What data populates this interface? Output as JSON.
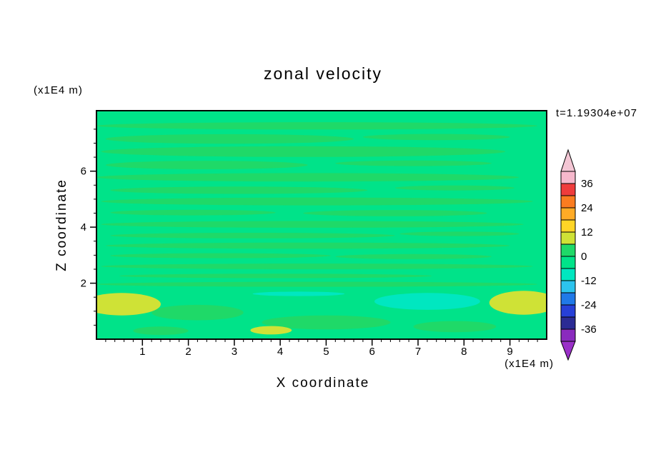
{
  "chart_data": {
    "type": "heatmap",
    "title": "zonal velocity",
    "xlabel": "X coordinate",
    "ylabel": "Z coordinate",
    "x_unit_note": "(x1E4 m)",
    "y_unit_note": "(x1E4 m)",
    "annotation": "t=1.19304e+07",
    "xlim": [
      0,
      9.8
    ],
    "ylim": [
      0,
      8.16
    ],
    "x_ticks": [
      1,
      2,
      3,
      4,
      5,
      6,
      7,
      8,
      9
    ],
    "y_ticks": [
      2,
      4,
      6
    ],
    "x_minor_step": 0.2,
    "y_minor_step": 0.5,
    "grid": false,
    "colorbar_position": "right",
    "background_color": "#00e389",
    "band_colors": {
      "g": "#1fd968",
      "y": "#cfe236",
      "c": "#00e7c0"
    },
    "colorbar": {
      "tick_labels": [
        "36",
        "24",
        "12",
        "0",
        "-12",
        "-24",
        "-36"
      ],
      "levels": [
        42,
        36,
        30,
        24,
        18,
        12,
        6,
        0,
        -6,
        -12,
        -18,
        -24,
        -30,
        -36,
        -42
      ],
      "colors_top_to_bottom": [
        "#f6b8cc",
        "#ef3c3c",
        "#fb7c20",
        "#ffab26",
        "#ffd526",
        "#cfe236",
        "#1fd968",
        "#00e389",
        "#00e7c0",
        "#2cc4ee",
        "#2079e8",
        "#2740d8",
        "#2b2b94",
        "#8a2bbe"
      ],
      "arrow_top_color": "#f3c6d4",
      "arrow_bottom_color": "#9a30c8"
    },
    "field_description": "Filled contour field dominated by the 0 to -6 spring-green band, with long thin horizontal streaks of the 0 to +6 green band, yellow-green (+6 to +12) patches at the lower-left and lower-right, and an aquamarine (-6 to -12) patch near the bottom right.",
    "streaks": [
      {
        "x": 4.8,
        "z": 7.62,
        "w": 9.6,
        "h": 0.26,
        "b": "g"
      },
      {
        "x": 2.9,
        "z": 7.15,
        "w": 5.4,
        "h": 0.34,
        "b": "g"
      },
      {
        "x": 7.4,
        "z": 7.22,
        "w": 3.2,
        "h": 0.22,
        "b": "g"
      },
      {
        "x": 4.5,
        "z": 6.7,
        "w": 8.8,
        "h": 0.38,
        "b": "g"
      },
      {
        "x": 2.4,
        "z": 6.22,
        "w": 4.4,
        "h": 0.3,
        "b": "g"
      },
      {
        "x": 6.9,
        "z": 6.28,
        "w": 3.4,
        "h": 0.2,
        "b": "g"
      },
      {
        "x": 4.6,
        "z": 5.78,
        "w": 9.2,
        "h": 0.3,
        "b": "g"
      },
      {
        "x": 3.1,
        "z": 5.32,
        "w": 5.6,
        "h": 0.26,
        "b": "g"
      },
      {
        "x": 7.8,
        "z": 5.4,
        "w": 2.6,
        "h": 0.18,
        "b": "g"
      },
      {
        "x": 4.8,
        "z": 4.92,
        "w": 9.4,
        "h": 0.28,
        "b": "g"
      },
      {
        "x": 2.1,
        "z": 4.52,
        "w": 3.6,
        "h": 0.2,
        "b": "g"
      },
      {
        "x": 6.5,
        "z": 4.5,
        "w": 4.0,
        "h": 0.22,
        "b": "g"
      },
      {
        "x": 4.7,
        "z": 4.1,
        "w": 9.2,
        "h": 0.24,
        "b": "g"
      },
      {
        "x": 3.4,
        "z": 3.7,
        "w": 6.2,
        "h": 0.2,
        "b": "g"
      },
      {
        "x": 7.9,
        "z": 3.76,
        "w": 2.6,
        "h": 0.16,
        "b": "g"
      },
      {
        "x": 4.6,
        "z": 3.34,
        "w": 8.8,
        "h": 0.22,
        "b": "g"
      },
      {
        "x": 2.7,
        "z": 2.98,
        "w": 4.8,
        "h": 0.18,
        "b": "g"
      },
      {
        "x": 6.9,
        "z": 2.95,
        "w": 3.4,
        "h": 0.18,
        "b": "g"
      },
      {
        "x": 4.8,
        "z": 2.6,
        "w": 9.4,
        "h": 0.2,
        "b": "g"
      },
      {
        "x": 3.9,
        "z": 2.26,
        "w": 6.8,
        "h": 0.16,
        "b": "g"
      },
      {
        "x": 4.8,
        "z": 1.96,
        "w": 9.6,
        "h": 0.18,
        "b": "g"
      },
      {
        "x": 2.2,
        "z": 0.95,
        "w": 2.0,
        "h": 0.55,
        "b": "g"
      },
      {
        "x": 5.0,
        "z": 0.6,
        "w": 2.8,
        "h": 0.5,
        "b": "g"
      },
      {
        "x": 7.8,
        "z": 0.45,
        "w": 1.8,
        "h": 0.4,
        "b": "g"
      },
      {
        "x": 1.4,
        "z": 0.3,
        "w": 1.2,
        "h": 0.3,
        "b": "g"
      },
      {
        "x": 0.55,
        "z": 1.25,
        "w": 1.7,
        "h": 0.8,
        "b": "y"
      },
      {
        "x": 9.3,
        "z": 1.3,
        "w": 1.5,
        "h": 0.85,
        "b": "y"
      },
      {
        "x": 3.8,
        "z": 0.32,
        "w": 0.9,
        "h": 0.3,
        "b": "y"
      },
      {
        "x": 7.2,
        "z": 1.35,
        "w": 2.3,
        "h": 0.6,
        "b": "c"
      },
      {
        "x": 4.4,
        "z": 1.62,
        "w": 2.0,
        "h": 0.16,
        "b": "c"
      }
    ]
  }
}
